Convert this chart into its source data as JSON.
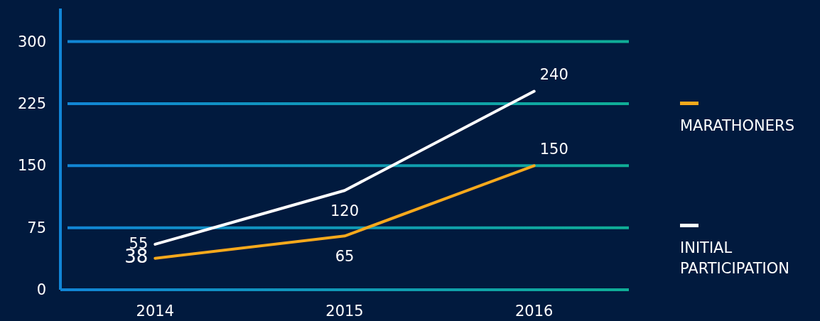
{
  "chart_data": {
    "type": "line",
    "categories": [
      "2014",
      "2015",
      "2016"
    ],
    "series": [
      {
        "name": "MARATHONERS",
        "color": "#f7a91c",
        "values": [
          38,
          65,
          150
        ]
      },
      {
        "name": "INITIAL PARTICIPATION",
        "color": "#ffffff",
        "values": [
          55,
          120,
          240
        ]
      }
    ],
    "ylim": [
      0,
      340
    ],
    "yticks": [
      0,
      75,
      150,
      225,
      300
    ],
    "grid": "y",
    "legend": "right",
    "data_labels": true,
    "marker": "none",
    "line_style": "solid"
  }
}
